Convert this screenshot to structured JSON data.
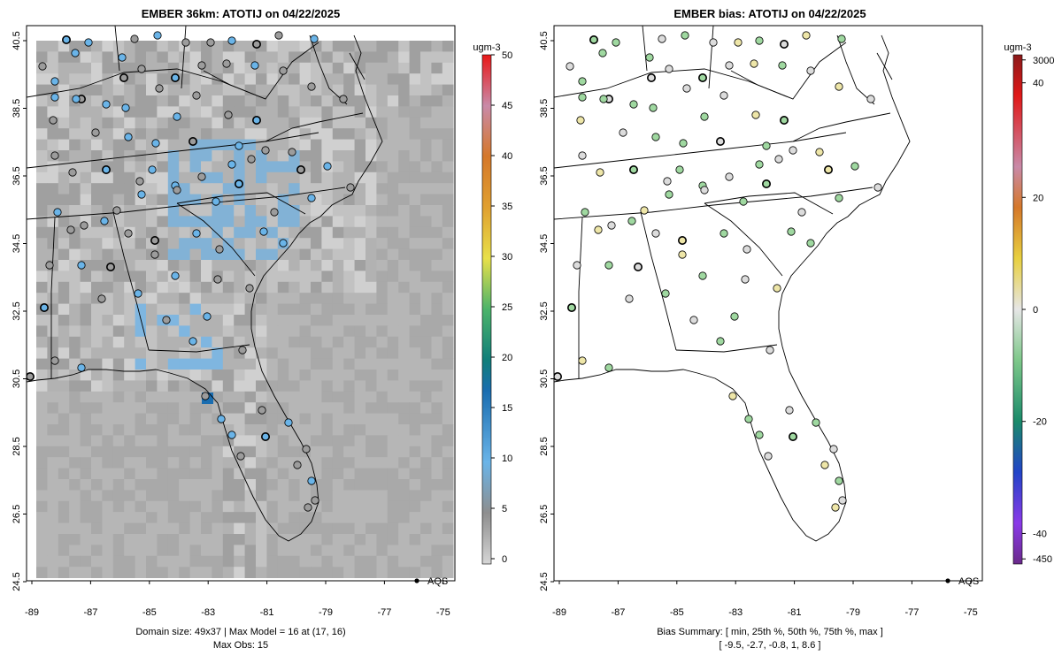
{
  "left_panel": {
    "title": "EMBER 36km: ATOTIJ on 04/22/2025",
    "y_ticks": [
      "40.5",
      "38.5",
      "36.5",
      "34.5",
      "32.5",
      "30.5",
      "28.5",
      "26.5",
      "24.5"
    ],
    "x_ticks": [
      "-89",
      "-87",
      "-85",
      "-83",
      "-81",
      "-79",
      "-77",
      "-75"
    ],
    "footer_line1": "Domain size: 49x37 | Max Model = 16 at (17, 16)",
    "footer_line2": "Max Obs: 15",
    "legend_label": "AQS",
    "colorbar": {
      "unit": "ugm-3",
      "labels": [
        "50",
        "45",
        "40",
        "35",
        "30",
        "25",
        "20",
        "15",
        "10",
        "5",
        "0"
      ],
      "stops": [
        {
          "value": 0,
          "color": "#d6d6d6"
        },
        {
          "value": 5,
          "color": "#8e8e8e"
        },
        {
          "value": 10,
          "color": "#6ab4e8"
        },
        {
          "value": 17,
          "color": "#1a6db0"
        },
        {
          "value": 20,
          "color": "#117e7a"
        },
        {
          "value": 25,
          "color": "#4cb36a"
        },
        {
          "value": 30,
          "color": "#e8e04a"
        },
        {
          "value": 35,
          "color": "#e0a030"
        },
        {
          "value": 40,
          "color": "#d5782a"
        },
        {
          "value": 45,
          "color": "#c98aa8"
        },
        {
          "value": 50,
          "color": "#e81818"
        }
      ]
    }
  },
  "right_panel": {
    "title": "EMBER bias: ATOTIJ on 04/22/2025",
    "y_ticks": [
      "40.5",
      "38.5",
      "36.5",
      "34.5",
      "32.5",
      "30.5",
      "28.5",
      "26.5",
      "24.5"
    ],
    "x_ticks": [
      "-89",
      "-87",
      "-85",
      "-83",
      "-81",
      "-79",
      "-77",
      "-75"
    ],
    "footer_line1": "Bias Summary: [ min, 25th %, 50th %, 75th %, max ]",
    "footer_line2": "[ -9.5,   -2.7,   -0.8,   1,   8.6 ]",
    "legend_label": "AQS",
    "colorbar": {
      "unit": "ugm-3",
      "labels": [
        "3000",
        "40",
        "20",
        "0",
        "-20",
        "-40",
        "-450"
      ],
      "stops": [
        {
          "pos": 0.0,
          "color": "#8b1a1a"
        },
        {
          "pos": 0.08,
          "color": "#e01818"
        },
        {
          "pos": 0.22,
          "color": "#c98aa8"
        },
        {
          "pos": 0.3,
          "color": "#d5782a"
        },
        {
          "pos": 0.4,
          "color": "#e8d040"
        },
        {
          "pos": 0.5,
          "color": "#e6e6e6"
        },
        {
          "pos": 0.6,
          "color": "#7ec88a"
        },
        {
          "pos": 0.72,
          "color": "#1a8a6a"
        },
        {
          "pos": 0.82,
          "color": "#2244c8"
        },
        {
          "pos": 0.92,
          "color": "#8a3ae8"
        },
        {
          "pos": 1.0,
          "color": "#6a2a8a"
        }
      ]
    }
  },
  "colors": {
    "obs_blue": "#6ab4e8",
    "obs_gray": "#9c9c9c",
    "bias_green": "#9fd8a0",
    "bias_gray": "#dcdcdc",
    "bias_yellow": "#eee6a8"
  }
}
